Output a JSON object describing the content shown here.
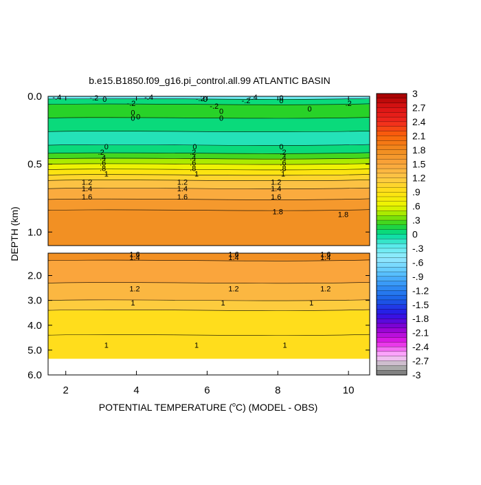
{
  "chart_data": {
    "type": "heatmap",
    "title": "b.e15.B1850.f09_g16.pi_control.all.99 ATLANTIC BASIN",
    "xlabel_pre": "POTENTIAL TEMPERATURE (",
    "xlabel_sup": "o",
    "xlabel_post": "C) (MODEL - OBS)",
    "ylabel": "DEPTH (km)",
    "xlim": [
      1.5,
      10.6
    ],
    "x_ticks": [
      2,
      4,
      6,
      8,
      10
    ],
    "x_tick_labels": [
      "2",
      "4",
      "6",
      "8",
      "10"
    ],
    "panels": [
      {
        "name": "upper",
        "ylim": [
          0.0,
          1.1
        ],
        "y_ticks": [
          0.0,
          0.5,
          1.0
        ],
        "y_tick_labels": [
          "0.0",
          "0.5",
          "1.0"
        ],
        "bands": [
          {
            "y0": 0.0,
            "y1": 0.02,
            "value": -0.35
          },
          {
            "y0": 0.02,
            "y1": 0.06,
            "value": 0.05
          },
          {
            "y0": 0.06,
            "y1": 0.16,
            "value": 0.2
          },
          {
            "y0": 0.16,
            "y1": 0.26,
            "value": 0.05
          },
          {
            "y0": 0.26,
            "y1": 0.36,
            "value": -0.1
          },
          {
            "y0": 0.36,
            "y1": 0.42,
            "value": 0.05
          },
          {
            "y0": 0.42,
            "y1": 0.46,
            "value": 0.25
          },
          {
            "y0": 0.46,
            "y1": 0.5,
            "value": 0.45
          },
          {
            "y0": 0.5,
            "y1": 0.54,
            "value": 0.65
          },
          {
            "y0": 0.54,
            "y1": 0.58,
            "value": 0.85
          },
          {
            "y0": 0.58,
            "y1": 0.62,
            "value": 1.05
          },
          {
            "y0": 0.62,
            "y1": 0.68,
            "value": 1.25
          },
          {
            "y0": 0.68,
            "y1": 0.76,
            "value": 1.45
          },
          {
            "y0": 0.76,
            "y1": 0.84,
            "value": 1.65
          },
          {
            "y0": 0.84,
            "y1": 1.1,
            "value": 1.75
          }
        ],
        "contour_labels": [
          {
            "x": 1.75,
            "y": 0.005,
            "text": "-.4"
          },
          {
            "x": 2.8,
            "y": 0.01,
            "text": "-.2"
          },
          {
            "x": 3.1,
            "y": 0.02,
            "text": "0"
          },
          {
            "x": 4.35,
            "y": 0.005,
            "text": "-.4"
          },
          {
            "x": 5.8,
            "y": 0.015,
            "text": "-.2"
          },
          {
            "x": 5.95,
            "y": 0.02,
            "text": "0"
          },
          {
            "x": 7.3,
            "y": 0.005,
            "text": "-.4"
          },
          {
            "x": 7.1,
            "y": 0.03,
            "text": "-.2"
          },
          {
            "x": 8.1,
            "y": 0.01,
            "text": "0"
          },
          {
            "x": 8.1,
            "y": 0.03,
            "text": "0"
          },
          {
            "x": 3.85,
            "y": 0.05,
            "text": "-.2"
          },
          {
            "x": 6.2,
            "y": 0.07,
            "text": "-.2"
          },
          {
            "x": 8.9,
            "y": 0.09,
            "text": "0"
          },
          {
            "x": 10.0,
            "y": 0.05,
            "text": ".2"
          },
          {
            "x": 3.9,
            "y": 0.12,
            "text": "0"
          },
          {
            "x": 3.9,
            "y": 0.16,
            "text": "0"
          },
          {
            "x": 4.05,
            "y": 0.15,
            "text": "0"
          },
          {
            "x": 6.4,
            "y": 0.11,
            "text": "0"
          },
          {
            "x": 6.4,
            "y": 0.16,
            "text": "0"
          },
          {
            "x": 3.15,
            "y": 0.37,
            "text": "0"
          },
          {
            "x": 5.65,
            "y": 0.37,
            "text": "0"
          },
          {
            "x": 8.1,
            "y": 0.37,
            "text": "0"
          },
          {
            "x": 3.0,
            "y": 0.41,
            "text": ".2"
          },
          {
            "x": 3.05,
            "y": 0.45,
            "text": ".4"
          },
          {
            "x": 3.05,
            "y": 0.49,
            "text": ".6"
          },
          {
            "x": 3.05,
            "y": 0.53,
            "text": ".8"
          },
          {
            "x": 3.15,
            "y": 0.57,
            "text": "1"
          },
          {
            "x": 5.6,
            "y": 0.41,
            "text": ".2"
          },
          {
            "x": 5.6,
            "y": 0.45,
            "text": ".4"
          },
          {
            "x": 5.6,
            "y": 0.49,
            "text": ".6"
          },
          {
            "x": 5.6,
            "y": 0.53,
            "text": ".8"
          },
          {
            "x": 5.7,
            "y": 0.57,
            "text": "1"
          },
          {
            "x": 8.15,
            "y": 0.41,
            "text": ".2"
          },
          {
            "x": 8.15,
            "y": 0.45,
            "text": ".4"
          },
          {
            "x": 8.15,
            "y": 0.49,
            "text": ".6"
          },
          {
            "x": 8.15,
            "y": 0.53,
            "text": ".8"
          },
          {
            "x": 8.15,
            "y": 0.57,
            "text": "1"
          },
          {
            "x": 2.6,
            "y": 0.63,
            "text": "1.2"
          },
          {
            "x": 2.6,
            "y": 0.68,
            "text": "1.4"
          },
          {
            "x": 2.6,
            "y": 0.74,
            "text": "1.6"
          },
          {
            "x": 5.3,
            "y": 0.63,
            "text": "1.2"
          },
          {
            "x": 5.3,
            "y": 0.68,
            "text": "1.4"
          },
          {
            "x": 5.3,
            "y": 0.74,
            "text": "1.6"
          },
          {
            "x": 7.95,
            "y": 0.63,
            "text": "1.2"
          },
          {
            "x": 7.95,
            "y": 0.68,
            "text": "1.4"
          },
          {
            "x": 7.95,
            "y": 0.74,
            "text": "1.6"
          },
          {
            "x": 8.0,
            "y": 0.85,
            "text": "1.8"
          },
          {
            "x": 9.85,
            "y": 0.87,
            "text": "1.8"
          }
        ]
      },
      {
        "name": "lower",
        "ylim": [
          1.1,
          6.0
        ],
        "y_ticks": [
          2.0,
          3.0,
          4.0,
          5.0,
          6.0
        ],
        "y_tick_labels": [
          "2.0",
          "3.0",
          "4.0",
          "5.0",
          "6.0"
        ],
        "nodata_below": 5.35,
        "bands": [
          {
            "y0": 1.1,
            "y1": 1.4,
            "value": 1.75
          },
          {
            "y0": 1.4,
            "y1": 2.3,
            "value": 1.5
          },
          {
            "y0": 2.3,
            "y1": 3.0,
            "value": 1.35
          },
          {
            "y0": 3.0,
            "y1": 3.4,
            "value": 1.15
          },
          {
            "y0": 3.4,
            "y1": 4.4,
            "value": 0.95
          },
          {
            "y0": 4.4,
            "y1": 5.35,
            "value": 0.95
          }
        ],
        "contour_labels": [
          {
            "x": 3.95,
            "y": 1.14,
            "text": "1.6"
          },
          {
            "x": 3.95,
            "y": 1.27,
            "text": "1.4"
          },
          {
            "x": 6.75,
            "y": 1.14,
            "text": "1.6"
          },
          {
            "x": 6.75,
            "y": 1.27,
            "text": "1.4"
          },
          {
            "x": 9.35,
            "y": 1.14,
            "text": "1.6"
          },
          {
            "x": 9.35,
            "y": 1.27,
            "text": "1.4"
          },
          {
            "x": 3.95,
            "y": 2.53,
            "text": "1.2"
          },
          {
            "x": 6.75,
            "y": 2.53,
            "text": "1.2"
          },
          {
            "x": 9.35,
            "y": 2.53,
            "text": "1.2"
          },
          {
            "x": 3.9,
            "y": 3.1,
            "text": "1"
          },
          {
            "x": 6.45,
            "y": 3.1,
            "text": "1"
          },
          {
            "x": 8.95,
            "y": 3.1,
            "text": "1"
          },
          {
            "x": 3.15,
            "y": 4.8,
            "text": "1"
          },
          {
            "x": 5.7,
            "y": 4.8,
            "text": "1"
          },
          {
            "x": 8.2,
            "y": 4.8,
            "text": "1"
          }
        ]
      }
    ],
    "colorbar": {
      "min": -3,
      "max": 3,
      "step": 0.1,
      "tick_labels": [
        "3",
        "2.7",
        "2.4",
        "2.1",
        "1.8",
        "1.5",
        "1.2",
        ".9",
        ".6",
        ".3",
        "0",
        "-.3",
        "-.6",
        "-.9",
        "-1.2",
        "-1.5",
        "-1.8",
        "-2.1",
        "-2.4",
        "-2.7",
        "-3"
      ]
    }
  }
}
